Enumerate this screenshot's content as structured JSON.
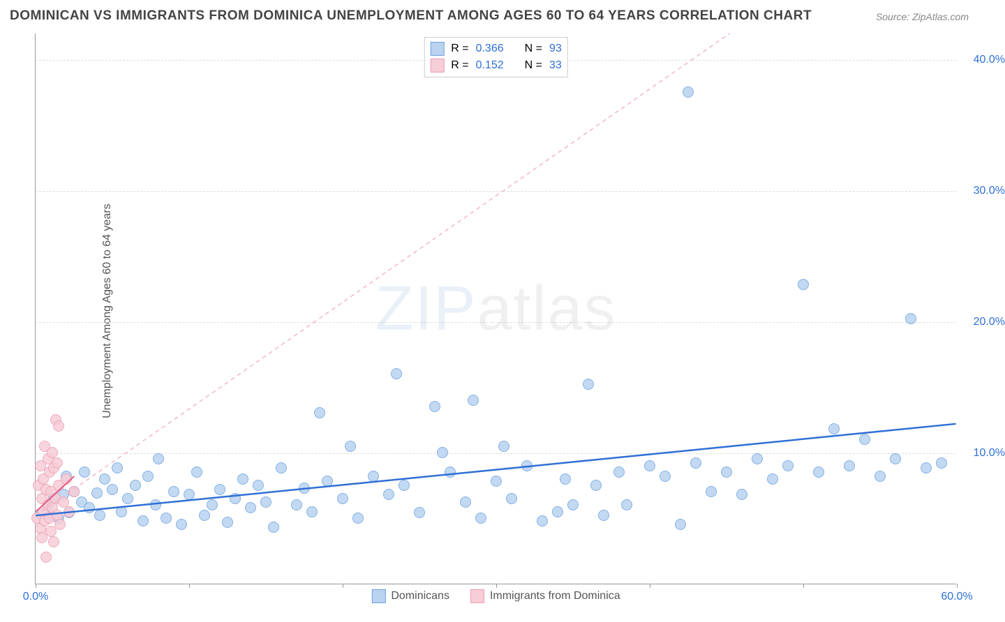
{
  "title": "DOMINICAN VS IMMIGRANTS FROM DOMINICA UNEMPLOYMENT AMONG AGES 60 TO 64 YEARS CORRELATION CHART",
  "source": "Source: ZipAtlas.com",
  "y_axis_label": "Unemployment Among Ages 60 to 64 years",
  "watermark_a": "ZIP",
  "watermark_b": "atlas",
  "chart": {
    "type": "scatter",
    "xlim": [
      0,
      60
    ],
    "ylim": [
      0,
      42
    ],
    "xtick_positions": [
      0,
      10,
      20,
      30,
      40,
      50,
      60
    ],
    "xtick_labels": [
      "0.0%",
      "",
      "",
      "",
      "",
      "",
      "60.0%"
    ],
    "ytick_positions": [
      10,
      20,
      30,
      40
    ],
    "ytick_labels": [
      "10.0%",
      "20.0%",
      "30.0%",
      "40.0%"
    ],
    "label_color_x0": "#2e6fd6",
    "label_color_x1": "#2e6fd6",
    "label_color_y": "#2e6fd6",
    "grid_color": "#dddddd",
    "axis_color": "#999999",
    "background_color": "#ffffff",
    "series": [
      {
        "name": "Dominicans",
        "fill_color": "#b9d3f0",
        "stroke_color": "#6fa3e0",
        "trend_line_color": "#2e6fd6",
        "trend_line_dash": "none",
        "trend_start": {
          "x": 0,
          "y": 5.2
        },
        "trend_end": {
          "x": 60,
          "y": 12.2
        },
        "identity_line_color": "#f4b6c5",
        "identity_line_dash": "6,5",
        "identity_start": {
          "x": 0,
          "y": 5.2
        },
        "identity_end": {
          "x": 60,
          "y": 54
        },
        "R": "0.366",
        "N": "93",
        "points": [
          [
            0.3,
            5.3
          ],
          [
            0.8,
            6.0
          ],
          [
            1.0,
            5.2
          ],
          [
            1.2,
            6.5
          ],
          [
            1.5,
            5.0
          ],
          [
            1.8,
            6.8
          ],
          [
            2.0,
            8.2
          ],
          [
            2.2,
            5.4
          ],
          [
            2.5,
            7.0
          ],
          [
            3.0,
            6.2
          ],
          [
            3.2,
            8.5
          ],
          [
            3.5,
            5.8
          ],
          [
            4.0,
            6.9
          ],
          [
            4.2,
            5.2
          ],
          [
            4.5,
            8.0
          ],
          [
            5.0,
            7.2
          ],
          [
            5.3,
            8.8
          ],
          [
            5.6,
            5.5
          ],
          [
            6.0,
            6.5
          ],
          [
            6.5,
            7.5
          ],
          [
            7.0,
            4.8
          ],
          [
            7.3,
            8.2
          ],
          [
            7.8,
            6.0
          ],
          [
            8.0,
            9.5
          ],
          [
            8.5,
            5.0
          ],
          [
            9.0,
            7.0
          ],
          [
            9.5,
            4.5
          ],
          [
            10.0,
            6.8
          ],
          [
            10.5,
            8.5
          ],
          [
            11.0,
            5.2
          ],
          [
            11.5,
            6.0
          ],
          [
            12.0,
            7.2
          ],
          [
            12.5,
            4.7
          ],
          [
            13.0,
            6.5
          ],
          [
            13.5,
            8.0
          ],
          [
            14.0,
            5.8
          ],
          [
            14.5,
            7.5
          ],
          [
            15.0,
            6.2
          ],
          [
            15.5,
            4.3
          ],
          [
            16.0,
            8.8
          ],
          [
            17.0,
            6.0
          ],
          [
            17.5,
            7.3
          ],
          [
            18.0,
            5.5
          ],
          [
            18.5,
            13.0
          ],
          [
            19.0,
            7.8
          ],
          [
            20.0,
            6.5
          ],
          [
            20.5,
            10.5
          ],
          [
            21.0,
            5.0
          ],
          [
            22.0,
            8.2
          ],
          [
            23.0,
            6.8
          ],
          [
            23.5,
            16.0
          ],
          [
            24.0,
            7.5
          ],
          [
            25.0,
            5.4
          ],
          [
            26.0,
            13.5
          ],
          [
            26.5,
            10.0
          ],
          [
            27.0,
            8.5
          ],
          [
            28.0,
            6.2
          ],
          [
            28.5,
            14.0
          ],
          [
            29.0,
            5.0
          ],
          [
            30.0,
            7.8
          ],
          [
            30.5,
            10.5
          ],
          [
            31.0,
            6.5
          ],
          [
            32.0,
            9.0
          ],
          [
            33.0,
            4.8
          ],
          [
            34.0,
            5.5
          ],
          [
            34.5,
            8.0
          ],
          [
            35.0,
            6.0
          ],
          [
            36.0,
            15.2
          ],
          [
            36.5,
            7.5
          ],
          [
            37.0,
            5.2
          ],
          [
            38.0,
            8.5
          ],
          [
            38.5,
            6.0
          ],
          [
            40.0,
            9.0
          ],
          [
            41.0,
            8.2
          ],
          [
            42.0,
            4.5
          ],
          [
            42.5,
            37.5
          ],
          [
            43.0,
            9.2
          ],
          [
            44.0,
            7.0
          ],
          [
            45.0,
            8.5
          ],
          [
            46.0,
            6.8
          ],
          [
            47.0,
            9.5
          ],
          [
            48.0,
            8.0
          ],
          [
            49.0,
            9.0
          ],
          [
            50.0,
            22.8
          ],
          [
            51.0,
            8.5
          ],
          [
            52.0,
            11.8
          ],
          [
            53.0,
            9.0
          ],
          [
            54.0,
            11.0
          ],
          [
            55.0,
            8.2
          ],
          [
            56.0,
            9.5
          ],
          [
            57.0,
            20.2
          ],
          [
            58.0,
            8.8
          ],
          [
            59.0,
            9.2
          ]
        ]
      },
      {
        "name": "Immigrants from Dominica",
        "fill_color": "#f7cdd7",
        "stroke_color": "#ec9fb3",
        "trend_line_color": "#e85a7a",
        "trend_line_dash": "none",
        "trend_start": {
          "x": 0,
          "y": 5.5
        },
        "trend_end": {
          "x": 2.5,
          "y": 8.2
        },
        "R": "0.152",
        "N": "33",
        "points": [
          [
            0.1,
            5.0
          ],
          [
            0.2,
            7.5
          ],
          [
            0.3,
            4.2
          ],
          [
            0.3,
            9.0
          ],
          [
            0.4,
            6.5
          ],
          [
            0.4,
            3.5
          ],
          [
            0.5,
            8.0
          ],
          [
            0.5,
            5.5
          ],
          [
            0.6,
            10.5
          ],
          [
            0.6,
            4.8
          ],
          [
            0.7,
            7.2
          ],
          [
            0.7,
            2.0
          ],
          [
            0.8,
            6.0
          ],
          [
            0.8,
            9.5
          ],
          [
            0.9,
            5.0
          ],
          [
            0.9,
            8.5
          ],
          [
            1.0,
            4.0
          ],
          [
            1.0,
            7.0
          ],
          [
            1.1,
            10.0
          ],
          [
            1.1,
            5.8
          ],
          [
            1.2,
            3.2
          ],
          [
            1.2,
            8.8
          ],
          [
            1.3,
            6.5
          ],
          [
            1.3,
            12.5
          ],
          [
            1.4,
            5.2
          ],
          [
            1.4,
            9.2
          ],
          [
            1.5,
            7.5
          ],
          [
            1.5,
            12.0
          ],
          [
            1.6,
            4.5
          ],
          [
            1.8,
            6.2
          ],
          [
            2.0,
            8.0
          ],
          [
            2.2,
            5.5
          ],
          [
            2.5,
            7.0
          ]
        ]
      }
    ]
  },
  "legend_top": {
    "R_label": "R =",
    "N_label": "N =",
    "value_color": "#2e6fd6",
    "label_color": "#555555"
  },
  "legend_bottom": [
    {
      "label": "Dominicans",
      "fill": "#b9d3f0",
      "stroke": "#6fa3e0"
    },
    {
      "label": "Immigrants from Dominica",
      "fill": "#f7cdd7",
      "stroke": "#ec9fb3"
    }
  ]
}
